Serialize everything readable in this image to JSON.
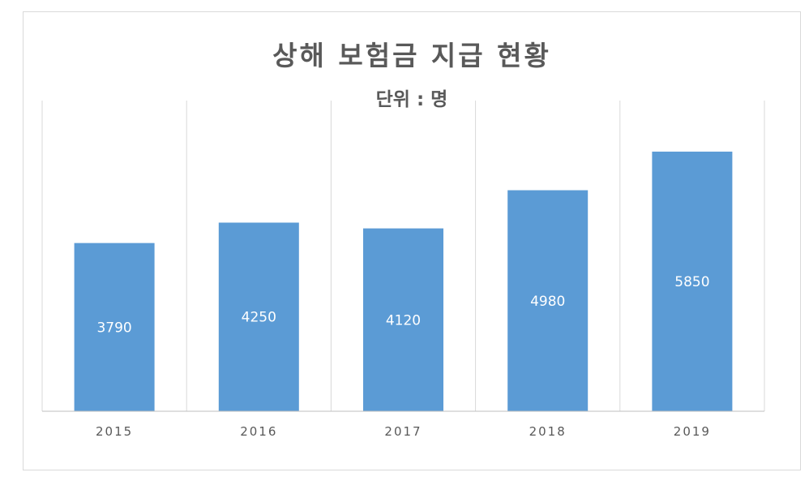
{
  "chart_data": {
    "type": "bar",
    "title": "상해 보험금 지급 현황",
    "subtitle": "단위 : 명",
    "categories": [
      "2015",
      "2016",
      "2017",
      "2018",
      "2019"
    ],
    "values": [
      3790,
      4250,
      4120,
      4980,
      5850
    ],
    "ylim": [
      0,
      7000
    ],
    "grid": "vertical",
    "data_labels": true,
    "bar_color": "#5b9bd5",
    "grid_color": "#d9d9d9",
    "axis_color": "#bfbfbf"
  }
}
